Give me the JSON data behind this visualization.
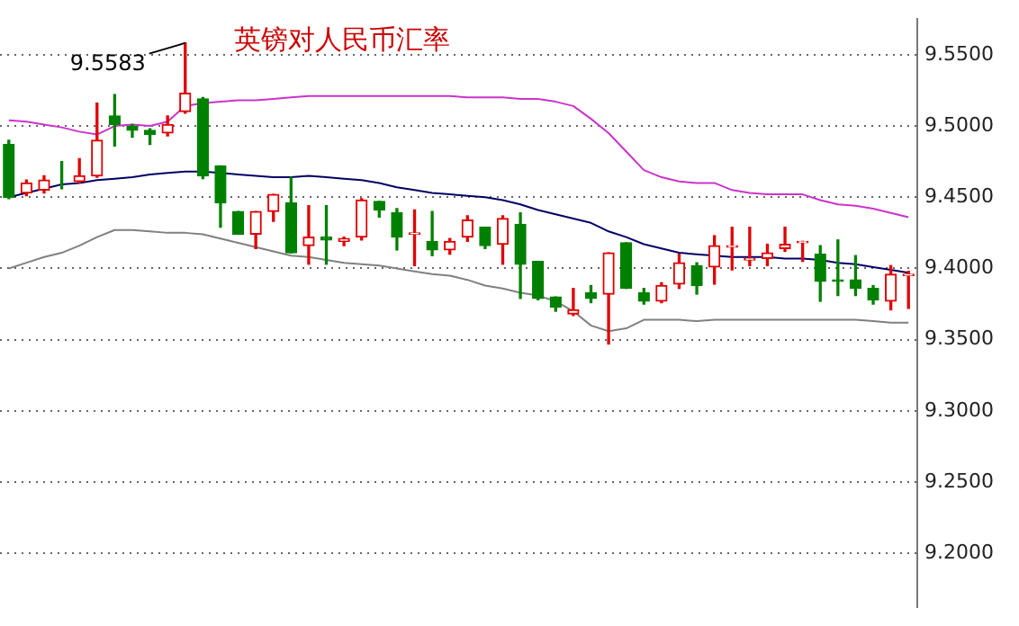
{
  "chart_data": {
    "type": "candlestick",
    "title": "英镑对人民币汇率",
    "categories": [
      null,
      null,
      null,
      null,
      null,
      null,
      null,
      null,
      null,
      null,
      null,
      null,
      null,
      null,
      null,
      null,
      null,
      null,
      null,
      null,
      null,
      null,
      null,
      null,
      null,
      null,
      null,
      null,
      null,
      null,
      null,
      null,
      null,
      null,
      null,
      null,
      null,
      null,
      null,
      null,
      null,
      null,
      null,
      null,
      null,
      null,
      null,
      null,
      null,
      null,
      null,
      null
    ],
    "ohlc": [
      [
        9.487,
        9.49,
        9.449,
        9.45
      ],
      [
        9.453,
        9.462,
        9.451,
        9.46
      ],
      [
        9.455,
        9.465,
        9.453,
        9.462
      ],
      [
        9.462,
        9.475,
        9.456,
        9.462
      ],
      [
        9.461,
        9.477,
        9.46,
        9.465
      ],
      [
        9.465,
        9.516,
        9.464,
        9.49
      ],
      [
        9.507,
        9.522,
        9.486,
        9.501
      ],
      [
        9.5,
        9.501,
        9.492,
        9.497
      ],
      [
        9.497,
        9.498,
        9.487,
        9.494
      ],
      [
        9.495,
        9.507,
        9.493,
        9.501
      ],
      [
        9.51,
        9.5583,
        9.509,
        9.523
      ],
      [
        9.519,
        9.52,
        9.463,
        9.465
      ],
      [
        9.472,
        9.472,
        9.429,
        9.446
      ],
      [
        9.44,
        9.44,
        9.424,
        9.424
      ],
      [
        9.424,
        9.44,
        9.414,
        9.44
      ],
      [
        9.44,
        9.452,
        9.433,
        9.452
      ],
      [
        9.446,
        9.464,
        9.411,
        9.411
      ],
      [
        9.416,
        9.444,
        9.403,
        9.422
      ],
      [
        9.422,
        9.444,
        9.403,
        9.42
      ],
      [
        9.419,
        9.422,
        9.416,
        9.421
      ],
      [
        9.422,
        9.449,
        9.42,
        9.448
      ],
      [
        9.447,
        9.447,
        9.436,
        9.441
      ],
      [
        9.439,
        9.442,
        9.413,
        9.422
      ],
      [
        9.424,
        9.441,
        9.402,
        9.425
      ],
      [
        9.419,
        9.44,
        9.409,
        9.413
      ],
      [
        9.413,
        9.421,
        9.41,
        9.419
      ],
      [
        9.422,
        9.437,
        9.419,
        9.434
      ],
      [
        9.429,
        9.429,
        9.414,
        9.416
      ],
      [
        9.417,
        9.437,
        9.403,
        9.435
      ],
      [
        9.431,
        9.439,
        9.379,
        9.403
      ],
      [
        9.405,
        9.405,
        9.378,
        9.379
      ],
      [
        9.38,
        9.38,
        9.37,
        9.373
      ],
      [
        9.368,
        9.386,
        9.367,
        9.371
      ],
      [
        9.383,
        9.388,
        9.376,
        9.379
      ],
      [
        9.382,
        9.411,
        9.347,
        9.411
      ],
      [
        9.418,
        9.418,
        9.386,
        9.386
      ],
      [
        9.383,
        9.386,
        9.375,
        9.377
      ],
      [
        9.377,
        9.39,
        9.376,
        9.388
      ],
      [
        9.389,
        9.41,
        9.386,
        9.404
      ],
      [
        9.402,
        9.404,
        9.382,
        9.388
      ],
      [
        9.401,
        9.423,
        9.389,
        9.416
      ],
      [
        9.415,
        9.429,
        9.399,
        9.416
      ],
      [
        9.406,
        9.429,
        9.402,
        9.407
      ],
      [
        9.407,
        9.417,
        9.402,
        9.411
      ],
      [
        9.414,
        9.429,
        9.412,
        9.417
      ],
      [
        9.418,
        9.419,
        9.405,
        9.419
      ],
      [
        9.41,
        9.416,
        9.377,
        9.391
      ],
      [
        9.392,
        9.42,
        9.381,
        9.391
      ],
      [
        9.392,
        9.409,
        9.381,
        9.386
      ],
      [
        9.386,
        9.388,
        9.375,
        9.378
      ],
      [
        9.377,
        9.402,
        9.371,
        9.396
      ],
      [
        9.395,
        9.398,
        9.372,
        9.396
      ]
    ],
    "colors": [
      "#008000",
      "#e00000",
      "#e00000",
      "#008000",
      "#e00000",
      "#e00000",
      "#008000",
      "#008000",
      "#008000",
      "#e00000",
      "#e00000",
      "#008000",
      "#008000",
      "#008000",
      "#e00000",
      "#e00000",
      "#008000",
      "#e00000",
      "#008000",
      "#e00000",
      "#e00000",
      "#008000",
      "#008000",
      "#e00000",
      "#008000",
      "#e00000",
      "#e00000",
      "#008000",
      "#e00000",
      "#008000",
      "#008000",
      "#008000",
      "#e00000",
      "#008000",
      "#e00000",
      "#008000",
      "#008000",
      "#e00000",
      "#e00000",
      "#008000",
      "#e00000",
      "#e00000",
      "#e00000",
      "#e00000",
      "#e00000",
      "#e00000",
      "#008000",
      "#008000",
      "#008000",
      "#008000",
      "#e00000",
      "#e00000"
    ],
    "series": [
      {
        "type": "line",
        "color": "#cc33cc",
        "values": [
          9.504,
          9.503,
          9.501,
          9.499,
          9.496,
          9.494,
          9.5,
          9.501,
          9.5,
          9.503,
          9.514,
          9.516,
          9.517,
          9.518,
          9.518,
          9.519,
          9.52,
          9.521,
          9.521,
          9.521,
          9.521,
          9.521,
          9.521,
          9.521,
          9.521,
          9.521,
          9.52,
          9.52,
          9.52,
          9.519,
          9.519,
          9.517,
          9.514,
          9.505,
          9.495,
          9.482,
          9.469,
          9.464,
          9.461,
          9.46,
          9.46,
          9.455,
          9.453,
          9.452,
          9.452,
          9.452,
          9.448,
          9.445,
          9.444,
          9.442,
          9.439,
          9.436
        ]
      },
      {
        "type": "line",
        "color": "#000066",
        "values": [
          9.45,
          9.453,
          9.456,
          9.459,
          9.46,
          9.462,
          9.463,
          9.464,
          9.466,
          9.467,
          9.468,
          9.468,
          9.467,
          9.466,
          9.465,
          9.464,
          9.464,
          9.465,
          9.464,
          9.463,
          9.462,
          9.46,
          9.457,
          9.455,
          9.453,
          9.452,
          9.451,
          9.45,
          9.448,
          9.445,
          9.441,
          9.438,
          9.435,
          9.432,
          9.426,
          9.422,
          9.417,
          9.414,
          9.411,
          9.41,
          9.409,
          9.408,
          9.408,
          9.408,
          9.407,
          9.407,
          9.406,
          9.404,
          9.403,
          9.401,
          9.399,
          9.397
        ]
      },
      {
        "type": "line",
        "color": "#808080",
        "values": [
          9.4,
          9.404,
          9.408,
          9.411,
          9.416,
          9.422,
          9.427,
          9.427,
          9.426,
          9.425,
          9.425,
          9.424,
          9.421,
          9.418,
          9.415,
          9.412,
          9.409,
          9.408,
          9.406,
          9.404,
          9.403,
          9.402,
          9.4,
          9.398,
          9.396,
          9.395,
          9.392,
          9.388,
          9.386,
          9.383,
          9.381,
          9.377,
          9.37,
          9.36,
          9.356,
          9.358,
          9.364,
          9.364,
          9.364,
          9.363,
          9.364,
          9.364,
          9.364,
          9.364,
          9.364,
          9.364,
          9.364,
          9.364,
          9.364,
          9.363,
          9.362,
          9.362
        ]
      }
    ],
    "ylim": [
      9.1625,
      9.575
    ],
    "yticks": [
      {
        "value": 9.2,
        "label": "9.2000"
      },
      {
        "value": 9.25,
        "label": "9.2500"
      },
      {
        "value": 9.3,
        "label": "9.3000"
      },
      {
        "value": 9.35,
        "label": "9.3500"
      },
      {
        "value": 9.4,
        "label": "9.4000"
      },
      {
        "value": 9.45,
        "label": "9.4500"
      },
      {
        "value": 9.5,
        "label": "9.5000"
      },
      {
        "value": 9.55,
        "label": "9.5500"
      }
    ],
    "grid": "y",
    "legend": false,
    "tick_labels": "y",
    "marker": "none",
    "line_style": "solid",
    "annotations": [
      "9.5583"
    ]
  }
}
